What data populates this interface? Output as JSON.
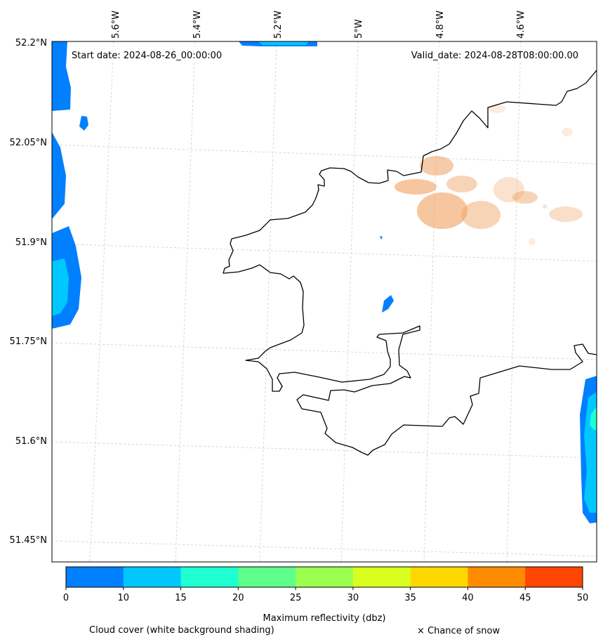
{
  "map": {
    "start_label": "Start date: 2024-08-26_00:00:00",
    "valid_label": "Valid_date: 2024-08-28T08:00:00.00",
    "lon_ticks": [
      "5.6°W",
      "5.4°W",
      "5.2°W",
      "5°W",
      "4.8°W",
      "4.6°W"
    ],
    "lat_ticks": [
      "52.2°N",
      "52.05°N",
      "51.9°N",
      "51.75°N",
      "51.6°N",
      "51.45°N"
    ],
    "gridlines": true
  },
  "colorbar": {
    "label": "Maximum reflectivity (dbz)",
    "ticks": [
      "0",
      "10",
      "15",
      "20",
      "25",
      "30",
      "35",
      "40",
      "45",
      "50"
    ],
    "bins": [
      {
        "from": 0,
        "to": 10,
        "color": "#0080ff"
      },
      {
        "from": 10,
        "to": 15,
        "color": "#00c8ff"
      },
      {
        "from": 15,
        "to": 20,
        "color": "#1effd2"
      },
      {
        "from": 20,
        "to": 25,
        "color": "#5fff8c"
      },
      {
        "from": 25,
        "to": 30,
        "color": "#9bff50"
      },
      {
        "from": 30,
        "to": 35,
        "color": "#d8ff1e"
      },
      {
        "from": 35,
        "to": 40,
        "color": "#ffd700"
      },
      {
        "from": 40,
        "to": 45,
        "color": "#ff8c00"
      },
      {
        "from": 45,
        "to": 50,
        "color": "#ff4500"
      }
    ]
  },
  "legend": {
    "cloud_label": "Cloud cover (white background shading)",
    "snow_label": "× Chance of snow"
  },
  "colors": {
    "coastline": "#000000",
    "grid": "#cccccc",
    "cloud_orange": "#f0a060"
  }
}
